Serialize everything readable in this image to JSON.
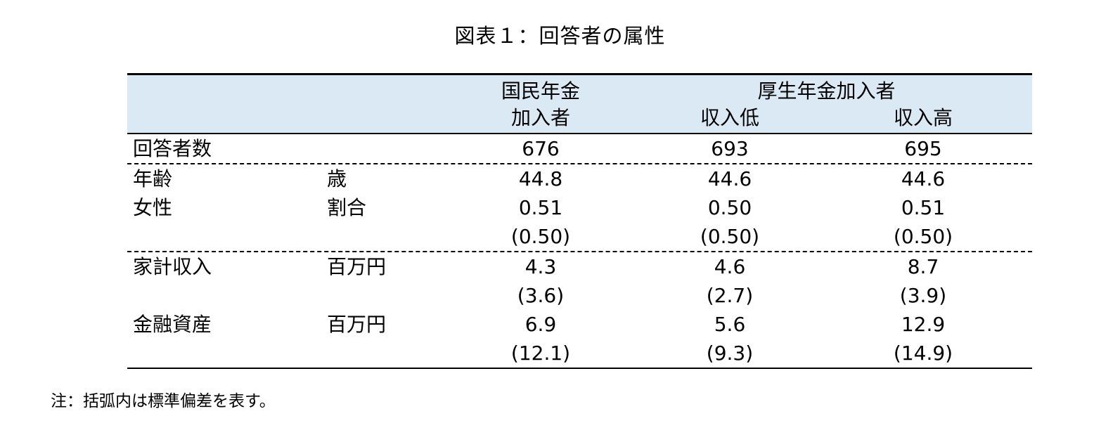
{
  "title": "図表１：回答者の属性",
  "header": {
    "col1_line1": "国民年金",
    "col1_line2": "加入者",
    "group_label": "厚生年金加入者",
    "col2": "収入低",
    "col3": "収入高"
  },
  "rows": [
    {
      "label": "回答者数",
      "unit": "",
      "v1": "676",
      "v2": "693",
      "v3": "695"
    },
    {
      "label": "年齢",
      "unit": "歳",
      "v1": "44.8",
      "v2": "44.6",
      "v3": "44.6"
    },
    {
      "label": "女性",
      "unit": "割合",
      "v1": "0.51",
      "v2": "0.50",
      "v3": "0.51"
    },
    {
      "label": "",
      "unit": "",
      "v1": "(0.50)",
      "v2": "(0.50)",
      "v3": "(0.50)"
    },
    {
      "label": "家計収入",
      "unit": "百万円",
      "v1": "4.3",
      "v2": "4.6",
      "v3": "8.7"
    },
    {
      "label": "",
      "unit": "",
      "v1": "(3.6)",
      "v2": "(2.7)",
      "v3": "(3.9)"
    },
    {
      "label": "金融資産",
      "unit": "百万円",
      "v1": "6.9",
      "v2": "5.6",
      "v3": "12.9"
    },
    {
      "label": "",
      "unit": "",
      "v1": "(12.1)",
      "v2": "(9.3)",
      "v3": "(14.9)"
    }
  ],
  "note": "注：括弧内は標準偏差を表す。"
}
